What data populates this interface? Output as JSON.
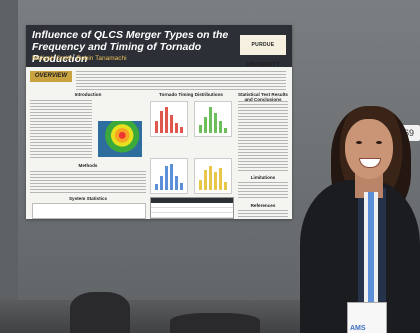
{
  "poster": {
    "title": "Influence of QLCS Merger Types on the Frequency and Timing of Tornado Production",
    "authors": "Maliyah Smith, Robin Tanamachi",
    "logo": "PURDUE UNIVERSITY",
    "overview_label": "OVERVIEW",
    "sections": {
      "introduction": "Introduction",
      "tornado_timing": "Tornado Timing Distributions",
      "statistical_results": "Statistical Test Results and Conclusions",
      "methods": "Methods",
      "system_statistics": "System Statistics",
      "limitations": "Limitations",
      "references": "References"
    }
  },
  "board_tag": "69",
  "colors": {
    "poster_header": "#2c2f35",
    "accent_gold": "#c9a340",
    "board": "#6e7275"
  }
}
